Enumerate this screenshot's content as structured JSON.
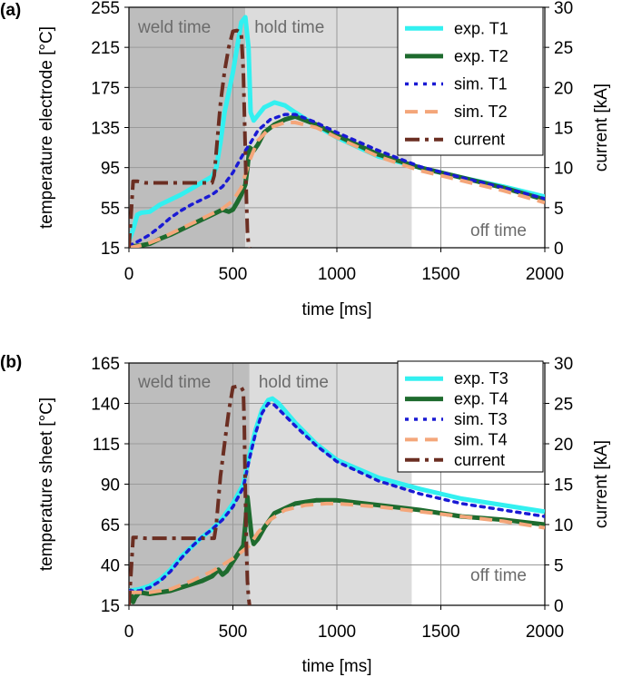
{
  "chart_data": [
    {
      "type": "line",
      "panel_label": "(a)",
      "xlabel": "time [ms]",
      "ylabel_left": "temperature electrode [°C]",
      "ylabel_right": "current [kA]",
      "xlim": [
        0,
        2000
      ],
      "ylim_left": [
        15,
        255
      ],
      "ylim_right": [
        0,
        30
      ],
      "xticks": [
        0,
        500,
        1000,
        1500,
        2000
      ],
      "yticks_left": [
        15,
        55,
        95,
        135,
        175,
        215,
        255
      ],
      "yticks_right": [
        0,
        5,
        10,
        15,
        20,
        25,
        30
      ],
      "grid": true,
      "regions": [
        {
          "label": "weld time",
          "x0": 0,
          "x1": 560,
          "color": "#bdbdbd"
        },
        {
          "label": "hold time",
          "x0": 560,
          "x1": 1360,
          "color": "#dcdcdc"
        },
        {
          "label": "off time",
          "x0": 1360,
          "x1": 2000,
          "color": "#ffffff"
        }
      ],
      "legend_position": "top-right",
      "series": [
        {
          "name": "exp. T1",
          "axis": "left",
          "color": "#33f0f0",
          "style": "solid",
          "x": [
            0,
            20,
            40,
            60,
            100,
            150,
            200,
            250,
            300,
            350,
            400,
            420,
            440,
            460,
            480,
            500,
            520,
            540,
            560,
            575,
            585,
            600,
            650,
            700,
            750,
            800,
            900,
            1000,
            1200,
            1400,
            1600,
            1800,
            2000
          ],
          "y": [
            22,
            33,
            48,
            50,
            51,
            58,
            63,
            68,
            74,
            80,
            86,
            95,
            120,
            150,
            170,
            190,
            215,
            240,
            245,
            215,
            150,
            142,
            155,
            160,
            157,
            150,
            137,
            125,
            106,
            95,
            85,
            76,
            66
          ]
        },
        {
          "name": "exp. T2",
          "axis": "left",
          "color": "#1e6b2e",
          "style": "solid",
          "x": [
            0,
            50,
            100,
            150,
            200,
            250,
            300,
            350,
            400,
            450,
            480,
            500,
            520,
            540,
            560,
            570,
            580,
            600,
            620,
            650,
            700,
            750,
            800,
            900,
            1000,
            1200,
            1400,
            1600,
            1800,
            2000
          ],
          "y": [
            16,
            17,
            19,
            24,
            28,
            33,
            38,
            43,
            48,
            53,
            51,
            53,
            60,
            68,
            78,
            95,
            115,
            112,
            118,
            130,
            138,
            143,
            146,
            138,
            127,
            108,
            95,
            85,
            75,
            63
          ]
        },
        {
          "name": "sim. T1",
          "axis": "left",
          "color": "#1a1ad4",
          "style": "dot",
          "x": [
            0,
            50,
            100,
            150,
            200,
            250,
            300,
            350,
            400,
            450,
            500,
            540,
            560,
            580,
            620,
            680,
            750,
            800,
            900,
            1000,
            1200,
            1400,
            1600,
            1800,
            2000
          ],
          "y": [
            17,
            22,
            28,
            36,
            45,
            52,
            58,
            63,
            68,
            76,
            90,
            105,
            112,
            118,
            132,
            143,
            148,
            148,
            140,
            130,
            112,
            96,
            85,
            75,
            64
          ]
        },
        {
          "name": "sim. T2",
          "axis": "left",
          "color": "#f4a67a",
          "style": "dash",
          "x": [
            0,
            50,
            100,
            150,
            200,
            250,
            300,
            350,
            400,
            450,
            500,
            540,
            560,
            580,
            620,
            680,
            750,
            800,
            900,
            1000,
            1200,
            1400,
            1600,
            1800,
            2000
          ],
          "y": [
            15,
            17,
            20,
            24,
            29,
            34,
            39,
            44,
            49,
            54,
            62,
            75,
            88,
            102,
            122,
            135,
            140,
            140,
            135,
            125,
            106,
            92,
            82,
            72,
            60
          ]
        },
        {
          "name": "current",
          "axis": "right",
          "color": "#6b2e22",
          "style": "dashdot",
          "x": [
            0,
            10,
            20,
            40,
            80,
            150,
            300,
            400,
            410,
            420,
            430,
            440,
            460,
            480,
            500,
            520,
            540,
            550,
            560,
            565,
            570,
            575,
            580
          ],
          "y": [
            0,
            4,
            8.3,
            8.3,
            8.1,
            8.1,
            8.1,
            8.1,
            9,
            12,
            15,
            18,
            22,
            25,
            27,
            27.1,
            26.8,
            22,
            12,
            6,
            2,
            0.5,
            0
          ]
        }
      ]
    },
    {
      "type": "line",
      "panel_label": "(b)",
      "xlabel": "time [ms]",
      "ylabel_left": "temperature sheet  [°C]",
      "ylabel_right": "current [kA]",
      "xlim": [
        0,
        2000
      ],
      "ylim_left": [
        15,
        165
      ],
      "ylim_right": [
        0,
        30
      ],
      "xticks": [
        0,
        500,
        1000,
        1500,
        2000
      ],
      "yticks_left": [
        15,
        40,
        65,
        90,
        115,
        140,
        165
      ],
      "yticks_right": [
        0,
        5,
        10,
        15,
        20,
        25,
        30
      ],
      "grid": true,
      "regions": [
        {
          "label": "weld time",
          "x0": 0,
          "x1": 580,
          "color": "#bdbdbd"
        },
        {
          "label": "hold time",
          "x0": 580,
          "x1": 1360,
          "color": "#dcdcdc"
        },
        {
          "label": "off time",
          "x0": 1360,
          "x1": 2000,
          "color": "#ffffff"
        }
      ],
      "legend_position": "top-right",
      "series": [
        {
          "name": "exp. T3",
          "axis": "left",
          "color": "#33f0f0",
          "style": "solid",
          "x": [
            0,
            50,
            100,
            150,
            200,
            250,
            300,
            350,
            400,
            450,
            500,
            550,
            580,
            610,
            640,
            670,
            690,
            720,
            800,
            900,
            1000,
            1200,
            1400,
            1600,
            1800,
            2000
          ],
          "y": [
            24,
            25,
            27,
            31,
            37,
            45,
            51,
            57,
            62,
            69,
            78,
            90,
            108,
            124,
            136,
            142,
            143,
            140,
            128,
            115,
            105,
            94,
            87,
            81,
            77,
            73
          ]
        },
        {
          "name": "exp. T4",
          "axis": "left",
          "color": "#1e6b2e",
          "style": "solid",
          "x": [
            0,
            10,
            20,
            30,
            50,
            100,
            200,
            300,
            350,
            400,
            430,
            450,
            470,
            500,
            530,
            550,
            560,
            570,
            580,
            590,
            600,
            620,
            650,
            700,
            800,
            900,
            1000,
            1200,
            1400,
            1600,
            1800,
            2000
          ],
          "y": [
            25,
            22,
            17,
            20,
            23,
            22,
            24,
            28,
            30,
            33,
            37,
            34,
            36,
            42,
            48,
            52,
            65,
            82,
            70,
            58,
            53,
            56,
            63,
            72,
            78,
            80,
            80,
            77,
            74,
            70,
            68,
            65
          ]
        },
        {
          "name": "sim. T3",
          "axis": "left",
          "color": "#1a1ad4",
          "style": "dot",
          "x": [
            0,
            50,
            100,
            150,
            200,
            250,
            300,
            350,
            400,
            450,
            500,
            550,
            580,
            610,
            640,
            670,
            700,
            800,
            900,
            1000,
            1200,
            1400,
            1600,
            1800,
            2000
          ],
          "y": [
            24,
            24,
            26,
            30,
            36,
            44,
            51,
            57,
            62,
            68,
            76,
            88,
            106,
            122,
            134,
            140,
            139,
            126,
            114,
            104,
            92,
            84,
            78,
            74,
            70
          ]
        },
        {
          "name": "sim. T4",
          "axis": "left",
          "color": "#f4a67a",
          "style": "dash",
          "x": [
            0,
            50,
            100,
            200,
            300,
            400,
            450,
            500,
            550,
            580,
            620,
            680,
            750,
            850,
            950,
            1000,
            1200,
            1400,
            1600,
            1800,
            2000
          ],
          "y": [
            23,
            23,
            23,
            25,
            30,
            36,
            40,
            44,
            49,
            52,
            60,
            68,
            74,
            77,
            78,
            78,
            76,
            73,
            70,
            67,
            63
          ]
        },
        {
          "name": "current",
          "axis": "right",
          "color": "#6b2e22",
          "style": "dashdot",
          "x": [
            0,
            10,
            20,
            40,
            80,
            150,
            300,
            410,
            420,
            430,
            440,
            460,
            480,
            500,
            520,
            540,
            550,
            555,
            560,
            565,
            570,
            575,
            580
          ],
          "y": [
            0,
            4,
            8.4,
            8.4,
            8.3,
            8.3,
            8.3,
            8.3,
            10,
            13,
            16,
            20,
            24,
            27,
            27.1,
            27,
            26.5,
            22,
            14,
            7,
            3,
            1,
            0
          ]
        }
      ]
    }
  ]
}
